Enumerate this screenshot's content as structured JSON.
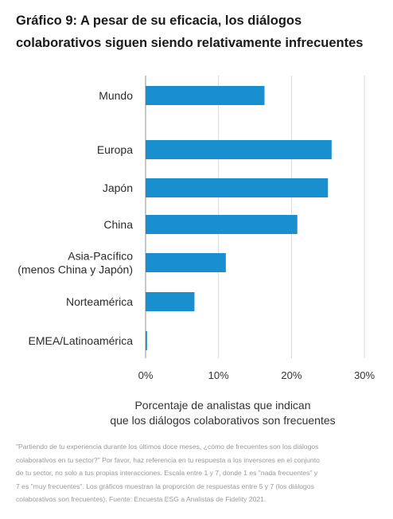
{
  "title_lines": [
    "Gráfico 9: A pesar de su eficacia, los diálogos",
    "colaborativos siguen siendo relativamente infrecuentes"
  ],
  "xlabel_lines": [
    "Porcentaje de analistas que indican",
    "que los diálogos colaborativos son frecuentes"
  ],
  "note_lines": [
    "\"Partiendo de tu experiencia durante los últimos doce meses, ¿cómo de frecuentes son los diálogos",
    "colaborativos en tu sector?\" Por favor, haz referencia en tu respuesta a los inversores en el conjunto",
    "de tu sector, no solo a tus propias interacciones. Escala entre 1 y 7, donde 1 es \"nada frecuentes\" y",
    "7 es \"muy frecuentes\". Los gráficos muestran la proporción de respuestas entre 5 y 7 (los diálogos",
    "colaborativos son frecuentes). Fuente: Encuesta ESG a Analistas de Fidelity 2021."
  ],
  "chart_data": {
    "type": "bar",
    "orientation": "horizontal",
    "categories": [
      [
        "Mundo"
      ],
      [
        "Europa"
      ],
      [
        "Japón"
      ],
      [
        "China"
      ],
      [
        "Asia-Pacífico",
        "(menos China y Japón)"
      ],
      [
        "Norteamérica"
      ],
      [
        "EMEA/Latinoamérica"
      ]
    ],
    "values": [
      16.3,
      25.5,
      25.0,
      20.8,
      11.0,
      6.7,
      0.2
    ],
    "xlim": [
      0,
      30
    ],
    "ticks": [
      0,
      10,
      20,
      30
    ],
    "tick_labels": [
      "0%",
      "10%",
      "20%",
      "30%"
    ],
    "grid": true,
    "bar_color": "#1a8fd0",
    "grid_color": "#d9d9d9",
    "axis_color": "#b5b5b5"
  }
}
